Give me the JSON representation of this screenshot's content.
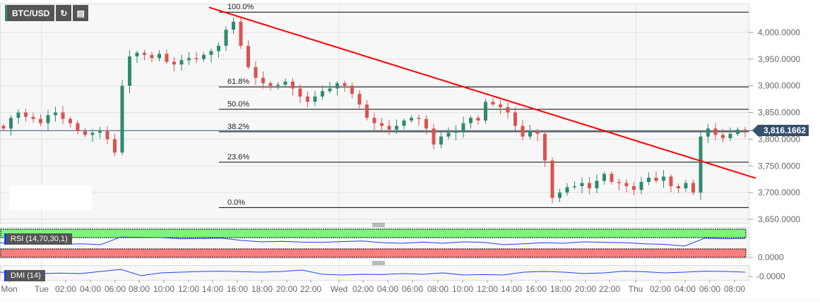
{
  "toolbar": {
    "symbol": "BTC/USD",
    "refresh_icon": "refresh-icon",
    "indicators_icon": "chart-settings-icon"
  },
  "chart_data": {
    "type": "candlestick",
    "title": "BTC/USD",
    "current_price": "3,816.1662",
    "y_ticks": [
      "4,000.0000",
      "3,950.0000",
      "3,900.0000",
      "3,850.0000",
      "3,800.0000",
      "3,750.0000",
      "3,700.0000",
      "3,650.0000"
    ],
    "y_tick_values": [
      4000,
      3950,
      3900,
      3850,
      3800,
      3750,
      3700,
      3650
    ],
    "ylim": [
      3642,
      4055
    ],
    "x_ticks": [
      "Mon",
      "Tue",
      "02:00",
      "04:00",
      "06:00",
      "08:00",
      "10:00",
      "12:00",
      "14:00",
      "16:00",
      "18:00",
      "20:00",
      "22:00",
      "Wed",
      "02:00",
      "04:00",
      "06:00",
      "08:00",
      "10:00",
      "12:00",
      "14:00",
      "16:00",
      "18:00",
      "20:00",
      "22:00",
      "Thu",
      "02:00",
      "04:00",
      "06:00",
      "08:00"
    ],
    "closes": [
      3820,
      3840,
      3850,
      3842,
      3838,
      3830,
      3845,
      3850,
      3838,
      3830,
      3815,
      3808,
      3812,
      3815,
      3800,
      3775,
      3900,
      3955,
      3962,
      3958,
      3952,
      3960,
      3945,
      3940,
      3948,
      3952,
      3950,
      3958,
      3965,
      3975,
      4005,
      4020,
      3975,
      3935,
      3915,
      3905,
      3900,
      3902,
      3908,
      3895,
      3880,
      3870,
      3880,
      3890,
      3895,
      3905,
      3900,
      3885,
      3865,
      3840,
      3830,
      3825,
      3818,
      3825,
      3835,
      3840,
      3838,
      3820,
      3790,
      3805,
      3812,
      3815,
      3830,
      3840,
      3835,
      3870,
      3865,
      3860,
      3850,
      3825,
      3805,
      3815,
      3810,
      3760,
      3690,
      3700,
      3710,
      3712,
      3718,
      3708,
      3722,
      3735,
      3720,
      3718,
      3712,
      3705,
      3720,
      3728,
      3722,
      3730,
      3712,
      3708,
      3718,
      3700,
      3805,
      3820,
      3808,
      3802,
      3810,
      3818,
      3816
    ],
    "fibonacci": [
      {
        "label": "100.0%",
        "value": 4038
      },
      {
        "label": "61.8%",
        "value": 3898
      },
      {
        "label": "50.0%",
        "value": 3856
      },
      {
        "label": "38.2%",
        "value": 3814
      },
      {
        "label": "23.6%",
        "value": 3757
      },
      {
        "label": "0.0%",
        "value": 3672
      }
    ],
    "trendline": {
      "color": "#ff0000",
      "from_index": 28,
      "from_value": 4047,
      "to_index": 100,
      "to_value": 3727
    },
    "colors": {
      "up": "#2e8b6e",
      "down": "#d9534f"
    },
    "rsi": {
      "label": "RSI (14,70,30,1)",
      "overbought": 70,
      "oversold": 30,
      "axis_label": "0.0000",
      "values": [
        52,
        48,
        50,
        46,
        48,
        45,
        72,
        71,
        70,
        66,
        67,
        68,
        60,
        55,
        57,
        54,
        53,
        56,
        58,
        52,
        50,
        54,
        50,
        55,
        53,
        45,
        48,
        52,
        50,
        55,
        53,
        52,
        48,
        46,
        40,
        68,
        66,
        67
      ]
    },
    "dmi": {
      "label": "DMI (14)",
      "axis_label": "-0.0000",
      "values": [
        55,
        50,
        45,
        48,
        45,
        60,
        75,
        30,
        50,
        55,
        60,
        62,
        58,
        55,
        60,
        70,
        40,
        35,
        40,
        38,
        45,
        40,
        50,
        35,
        38,
        35,
        55,
        60,
        55,
        45,
        50,
        62,
        58,
        50,
        55,
        62,
        60,
        55
      ]
    }
  }
}
